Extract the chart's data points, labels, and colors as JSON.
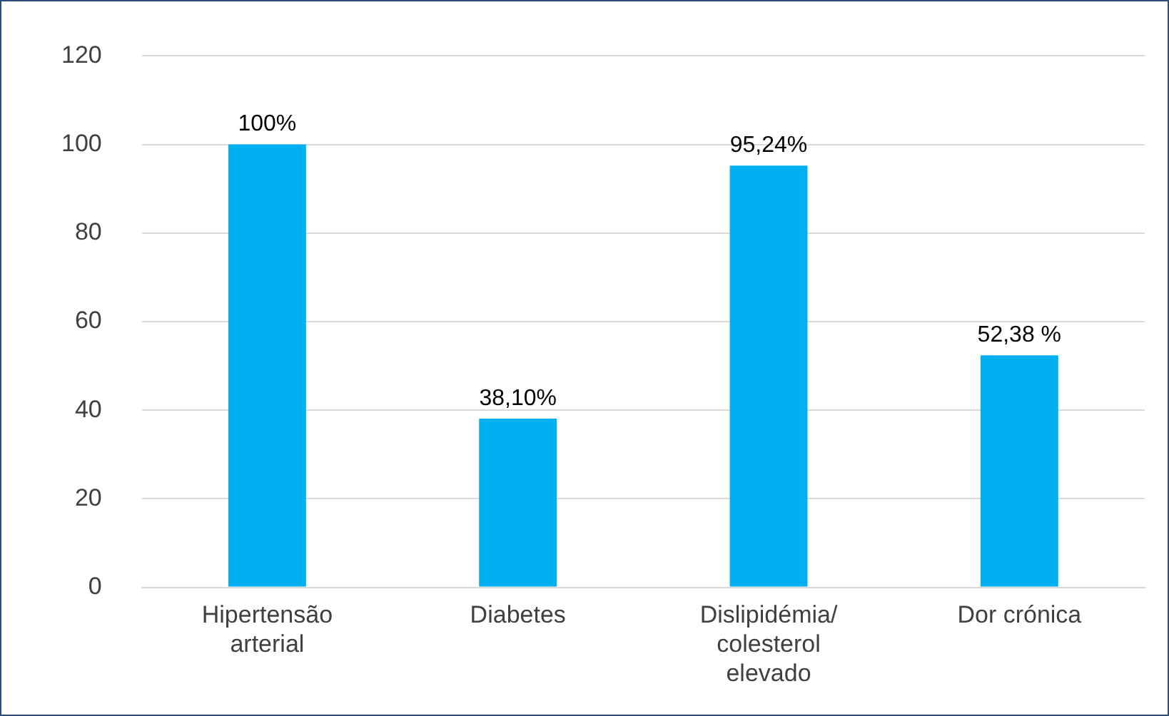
{
  "chart_data": {
    "type": "bar",
    "categories": [
      "Hipertensão arterial",
      "Diabetes",
      "Dislipidémia/ colesterol elevado",
      "Dor crónica"
    ],
    "values": [
      100,
      38.1,
      95.24,
      52.38
    ],
    "value_labels": [
      "100%",
      "38,10%",
      "95,24%",
      "52,38 %"
    ],
    "color": "#00b0f0",
    "ylim": [
      0,
      120
    ],
    "yticks": [
      0,
      20,
      40,
      60,
      80,
      100,
      120
    ],
    "grid": "y",
    "legend": false
  }
}
